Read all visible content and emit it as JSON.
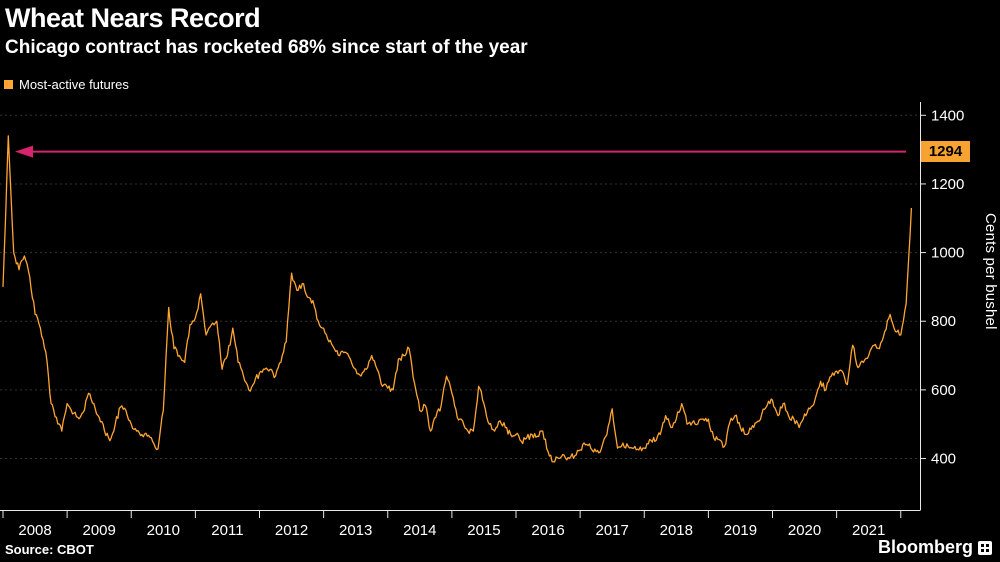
{
  "page": {
    "title": "Wheat Nears Record",
    "subtitle": "Chicago contract has rocketed 68% since start of the year",
    "source": "Source: CBOT",
    "brand": "Bloomberg"
  },
  "legend": {
    "label": "Most-active futures",
    "swatch_color": "#ffa532"
  },
  "chart_data": {
    "type": "line",
    "title": "Wheat Nears Record",
    "subtitle": "Chicago contract has rocketed 68% since start of the year",
    "ylabel": "Cents per bushel",
    "yticks": [
      400,
      600,
      800,
      1000,
      1200,
      1400
    ],
    "ylim": [
      250,
      1430
    ],
    "xlim": [
      2008.0,
      2022.3
    ],
    "xticks": [
      2008,
      2009,
      2010,
      2011,
      2012,
      2013,
      2014,
      2015,
      2016,
      2017,
      2018,
      2019,
      2020,
      2021,
      2022
    ],
    "xtick_labels": [
      "2008",
      "2009",
      "2010",
      "2011",
      "2012",
      "2013",
      "2014",
      "2015",
      "2016",
      "2017",
      "2018",
      "2019",
      "2020",
      "2021"
    ],
    "grid": "dashed-horizontal",
    "legend_position": "top-left",
    "noise_amplitude": 10,
    "series": [
      {
        "name": "Most-active futures",
        "color": "#ffa532",
        "x_start": 2008.0,
        "x_step_years": 0.0833333,
        "values": [
          900,
          1340,
          1000,
          950,
          990,
          930,
          820,
          780,
          710,
          560,
          520,
          480,
          560,
          530,
          520,
          535,
          590,
          560,
          520,
          480,
          452,
          500,
          550,
          540,
          500,
          480,
          470,
          465,
          450,
          428,
          540,
          840,
          720,
          700,
          680,
          790,
          810,
          880,
          760,
          790,
          800,
          660,
          700,
          780,
          680,
          640,
          600,
          620,
          650,
          660,
          660,
          640,
          680,
          740,
          940,
          890,
          910,
          870,
          860,
          800,
          780,
          740,
          720,
          700,
          710,
          690,
          660,
          640,
          660,
          700,
          660,
          610,
          605,
          600,
          690,
          700,
          720,
          620,
          540,
          555,
          480,
          520,
          555,
          640,
          590,
          520,
          510,
          480,
          480,
          610,
          560,
          500,
          480,
          510,
          490,
          470,
          470,
          450,
          460,
          470,
          465,
          480,
          420,
          390,
          400,
          410,
          400,
          408,
          425,
          440,
          430,
          420,
          430,
          470,
          545,
          430,
          445,
          435,
          430,
          425,
          430,
          455,
          450,
          470,
          525,
          490,
          515,
          560,
          500,
          505,
          500,
          515,
          515,
          460,
          455,
          435,
          505,
          525,
          490,
          470,
          485,
          505,
          530,
          555,
          570,
          525,
          560,
          525,
          515,
          490,
          530,
          545,
          575,
          625,
          600,
          640,
          655,
          655,
          615,
          730,
          665,
          680,
          700,
          730,
          720,
          770,
          820,
          770,
          760,
          850,
          1130
        ]
      }
    ],
    "annotation": {
      "label": "1294",
      "value": 1294,
      "arrow_color": "#d6246e",
      "box_color": "#f7a332",
      "text_color": "#000000"
    }
  }
}
